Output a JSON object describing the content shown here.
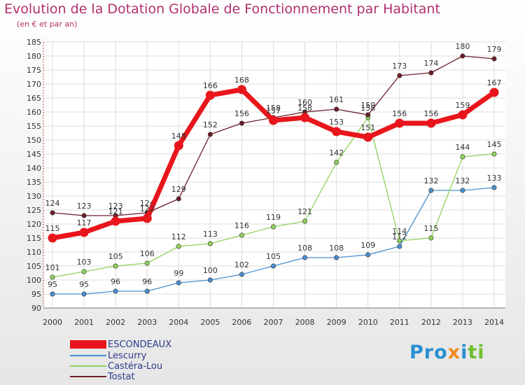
{
  "title": "Evolution de la Dotation Globale de Fonctionnement par Habitant",
  "subtitle": "(en € et par an)",
  "logo": {
    "part1": "Pro",
    "part2": "x",
    "part3": "i",
    "part4": "ti"
  },
  "chart_data": {
    "type": "line",
    "title": "Evolution de la Dotation Globale de Fonctionnement par Habitant",
    "subtitle": "(en € et par an)",
    "xlabel": "",
    "ylabel": "",
    "x": [
      "2000",
      "2001",
      "2002",
      "2003",
      "2004",
      "2005",
      "2006",
      "2007",
      "2008",
      "2009",
      "2010",
      "2011",
      "2012",
      "2013",
      "2014"
    ],
    "ylim": [
      90,
      185
    ],
    "yticks": [
      90,
      95,
      100,
      105,
      110,
      115,
      120,
      125,
      130,
      135,
      140,
      145,
      150,
      155,
      160,
      165,
      170,
      175,
      180,
      185
    ],
    "grid": true,
    "legend_position": "bottom-left",
    "series": [
      {
        "name": "ESCONDEAUX",
        "color": "#e8161c",
        "emphasis": true,
        "values": [
          115,
          117,
          121,
          122,
          148,
          166,
          168,
          157,
          158,
          153,
          151,
          156,
          156,
          159,
          167
        ]
      },
      {
        "name": "Lescurry",
        "color": "#4a8fd0",
        "values": [
          95,
          95,
          96,
          96,
          99,
          100,
          102,
          105,
          108,
          108,
          109,
          112,
          132,
          132,
          133
        ]
      },
      {
        "name": "Castéra-Lou",
        "color": "#8ed35a",
        "values": [
          101,
          103,
          105,
          106,
          112,
          113,
          116,
          119,
          121,
          142,
          158,
          114,
          115,
          144,
          145
        ]
      },
      {
        "name": "Tostat",
        "color": "#6b1e28",
        "values": [
          124,
          123,
          123,
          124,
          129,
          152,
          156,
          158,
          160,
          161,
          159,
          173,
          174,
          180,
          179
        ]
      }
    ]
  }
}
